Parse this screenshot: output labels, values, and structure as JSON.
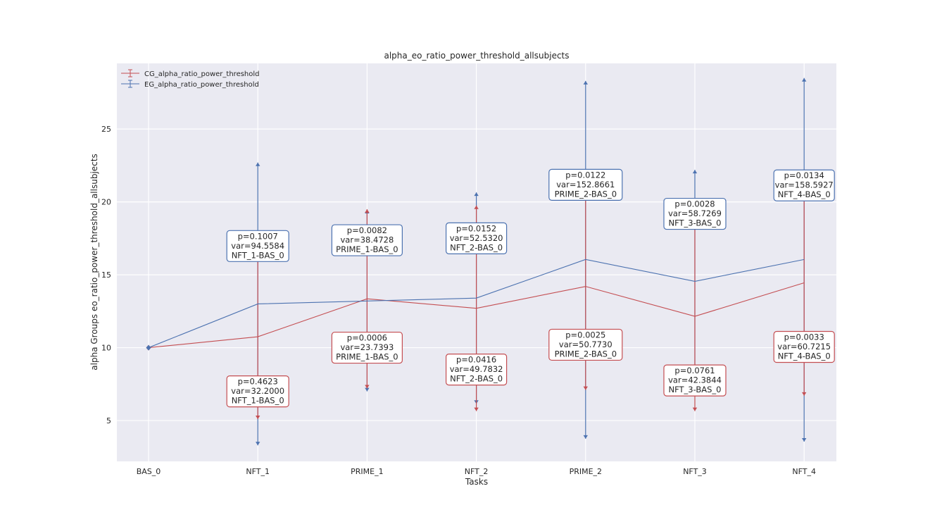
{
  "chart_data": {
    "type": "line",
    "title": "alpha_eo_ratio_power_threshold_allsubjects",
    "xlabel": "Tasks",
    "ylabel": "alpha Groups eo_ratio_power_threshold_allsubjects",
    "categories": [
      "BAS_0",
      "NFT_1",
      "PRIME_1",
      "NFT_2",
      "PRIME_2",
      "NFT_3",
      "NFT_4"
    ],
    "ylim": [
      2.2,
      29.5
    ],
    "yticks": [
      5,
      10,
      15,
      20,
      25
    ],
    "grid": true,
    "legend_position": "top-left",
    "series": [
      {
        "name": "CG_alpha_ratio_power_threshold",
        "color": "#c44e52",
        "values": [
          10.0,
          10.75,
          13.35,
          12.7,
          14.2,
          12.15,
          14.45
        ],
        "error_low": [
          10.0,
          5.1,
          7.2,
          5.65,
          7.1,
          5.65,
          6.7
        ],
        "error_high": [
          10.0,
          16.4,
          19.5,
          19.75,
          21.3,
          18.65,
          22.2
        ],
        "annotations": [
          null,
          {
            "p": "p=0.4623",
            "var": "var=32.2000",
            "label": "NFT_1-BAS_0"
          },
          {
            "p": "p=0.0006",
            "var": "var=23.7393",
            "label": "PRIME_1-BAS_0"
          },
          {
            "p": "p=0.0416",
            "var": "var=49.7832",
            "label": "NFT_2-BAS_0"
          },
          {
            "p": "p=0.0025",
            "var": "var=50.7730",
            "label": "PRIME_2-BAS_0"
          },
          {
            "p": "p=0.0761",
            "var": "var=42.3844",
            "label": "NFT_3-BAS_0"
          },
          {
            "p": "p=0.0033",
            "var": "var=60.7215",
            "label": "NFT_4-BAS_0"
          }
        ]
      },
      {
        "name": "EG_alpha_ratio_power_threshold",
        "color": "#4c72b0",
        "values": [
          10.0,
          13.0,
          13.2,
          13.4,
          16.05,
          14.55,
          16.05
        ],
        "error_low": [
          10.0,
          3.3,
          7.0,
          6.15,
          3.75,
          6.95,
          3.55
        ],
        "error_high": [
          10.0,
          22.7,
          19.45,
          20.65,
          28.3,
          22.2,
          28.5
        ],
        "annotations": [
          null,
          {
            "p": "p=0.1007",
            "var": "var=94.5584",
            "label": "NFT_1-BAS_0"
          },
          {
            "p": "p=0.0082",
            "var": "var=38.4728",
            "label": "PRIME_1-BAS_0"
          },
          {
            "p": "p=0.0152",
            "var": "var=52.5320",
            "label": "NFT_2-BAS_0"
          },
          {
            "p": "p=0.0122",
            "var": "var=152.8661",
            "label": "PRIME_2-BAS_0"
          },
          {
            "p": "p=0.0028",
            "var": "var=58.7269",
            "label": "NFT_3-BAS_0"
          },
          {
            "p": "p=0.0134",
            "var": "var=158.5927",
            "label": "NFT_4-BAS_0"
          }
        ]
      }
    ]
  }
}
